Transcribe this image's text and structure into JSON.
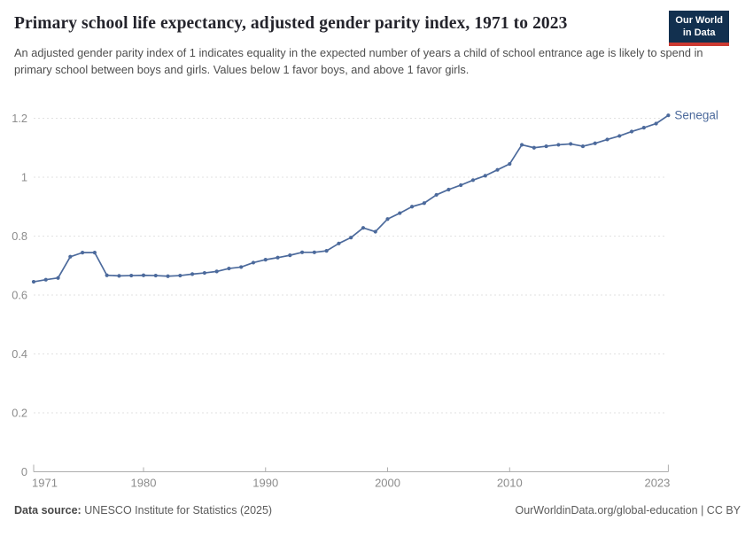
{
  "header": {
    "title": "Primary school life expectancy, adjusted gender parity index, 1971 to 2023",
    "subtitle": "An adjusted gender parity index of 1 indicates equality in the expected number of years a child of school entrance age is likely to spend in primary school between boys and girls. Values below 1 favor boys, and above 1 favor girls.",
    "logo": {
      "line1": "Our World",
      "line2": "in Data",
      "bg_color": "#12304f",
      "stripe_color": "#cc3a32"
    }
  },
  "chart_data": {
    "type": "line",
    "title": "Primary school life expectancy, adjusted gender parity index, 1971 to 2023",
    "xlabel": "",
    "ylabel": "",
    "xlim": [
      1971,
      2023
    ],
    "ylim": [
      0,
      1.2
    ],
    "grid": "horizontal-dashed",
    "legend_position": "end-of-line-label",
    "xticks": [
      1971,
      1980,
      1990,
      2000,
      2010,
      2023
    ],
    "yticks": [
      0,
      0.2,
      0.4,
      0.6,
      0.8,
      1,
      1.2
    ],
    "series": [
      {
        "name": "Senegal",
        "color": "#4c6a9c",
        "x": [
          1971,
          1972,
          1973,
          1974,
          1975,
          1976,
          1977,
          1978,
          1979,
          1980,
          1981,
          1982,
          1983,
          1984,
          1985,
          1986,
          1987,
          1988,
          1989,
          1990,
          1991,
          1992,
          1993,
          1994,
          1995,
          1996,
          1997,
          1998,
          1999,
          2000,
          2001,
          2002,
          2003,
          2004,
          2005,
          2006,
          2007,
          2008,
          2009,
          2010,
          2011,
          2012,
          2013,
          2014,
          2015,
          2016,
          2017,
          2018,
          2019,
          2020,
          2021,
          2022,
          2023
        ],
        "values": [
          0.645,
          0.652,
          0.658,
          0.73,
          0.744,
          0.744,
          0.667,
          0.665,
          0.666,
          0.667,
          0.666,
          0.664,
          0.666,
          0.671,
          0.675,
          0.68,
          0.69,
          0.695,
          0.71,
          0.72,
          0.727,
          0.735,
          0.745,
          0.745,
          0.75,
          0.775,
          0.795,
          0.828,
          0.815,
          0.858,
          0.878,
          0.9,
          0.912,
          0.94,
          0.958,
          0.973,
          0.99,
          1.005,
          1.025,
          1.045,
          1.11,
          1.1,
          1.105,
          1.11,
          1.113,
          1.105,
          1.115,
          1.128,
          1.14,
          1.155,
          1.168,
          1.182,
          1.21
        ]
      }
    ],
    "style": {
      "gridline_color": "#e2e2e2",
      "axis_color": "#adadad",
      "tick_label_color": "#8c8c8c"
    }
  },
  "footer": {
    "source_label": "Data source:",
    "source_text": " UNESCO Institute for Statistics (2025)",
    "attribution": "OurWorldinData.org/global-education | CC BY"
  }
}
